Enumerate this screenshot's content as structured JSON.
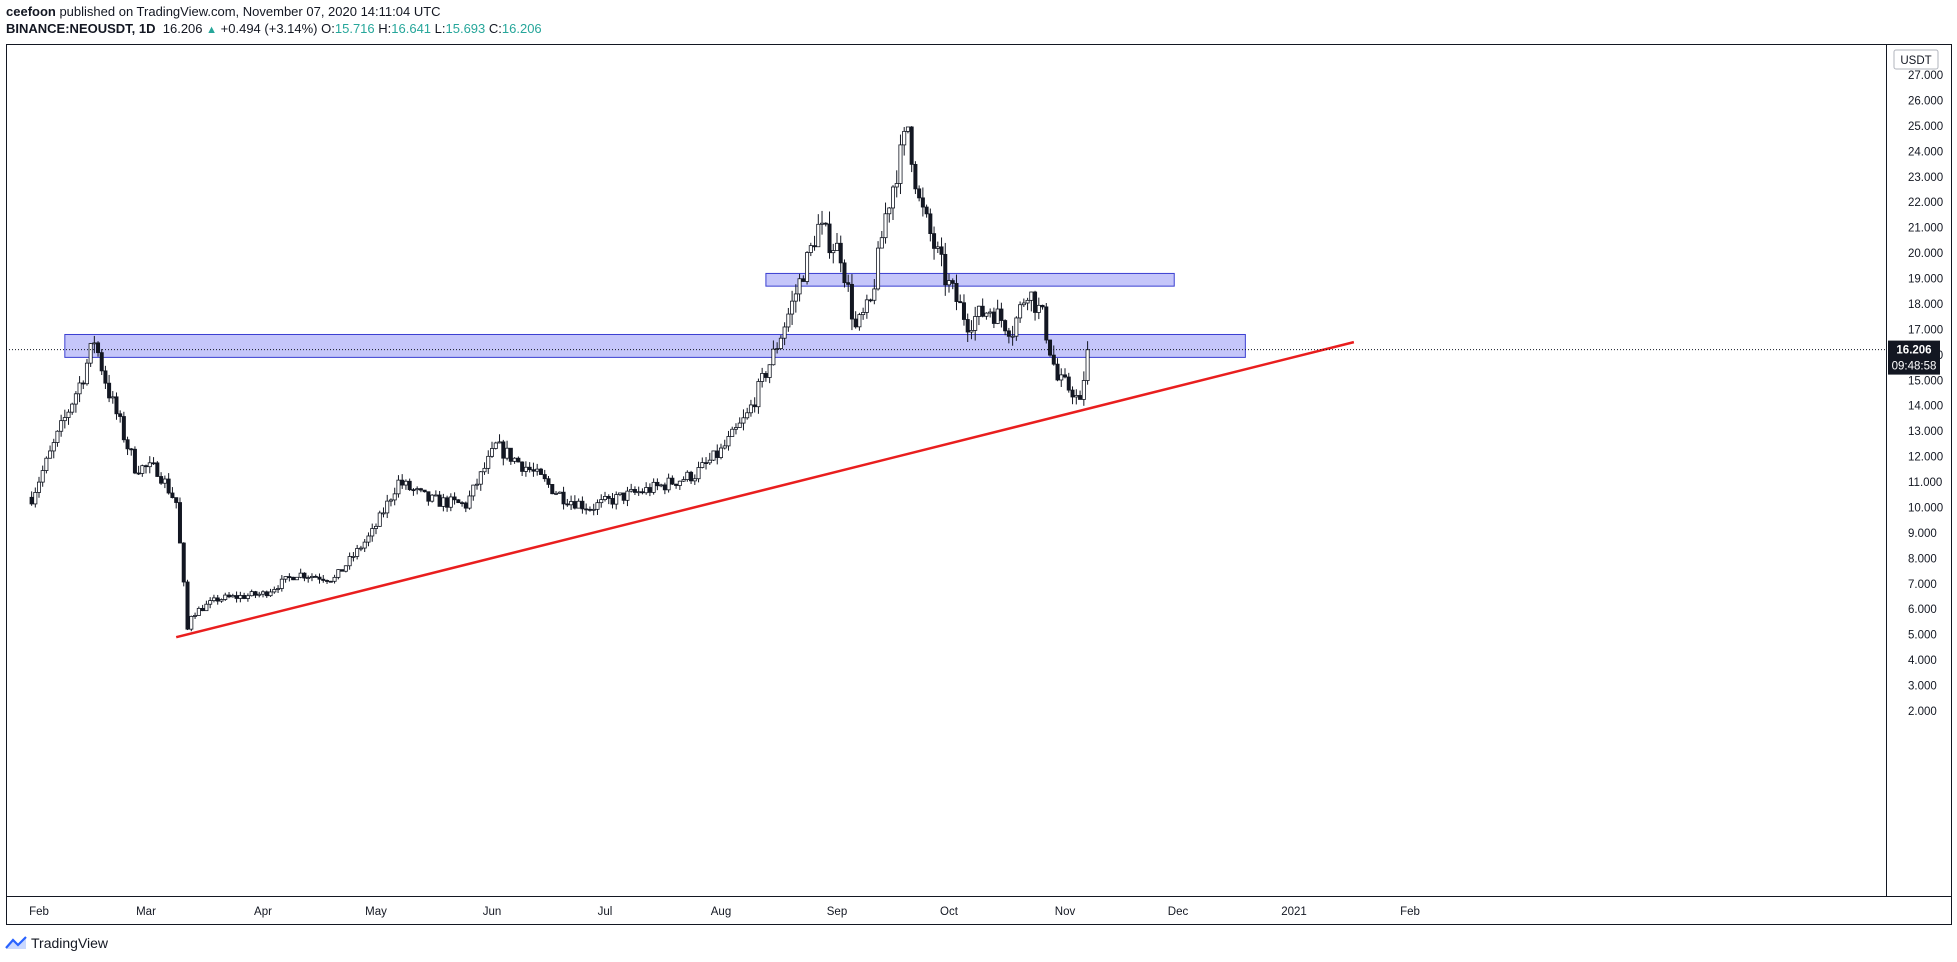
{
  "header": {
    "author": "ceefoon",
    "published_text": " published on TradingView.com, November 07, 2020 14:11:04 UTC",
    "symbol": "BINANCE:NEOUSDT, 1D",
    "last": "16.206",
    "change": "+0.494 (+3.14%)",
    "o_label": "O:",
    "o_value": "15.716",
    "h_label": "H:",
    "h_value": "16.641",
    "l_label": "L:",
    "l_value": "15.693",
    "c_label": "C:",
    "c_value": "16.206"
  },
  "price_axis": {
    "currency": "USDT",
    "last_price_label": "16.206",
    "countdown": "09:48:58"
  },
  "footer": {
    "brand": "TradingView"
  },
  "colors": {
    "candle": "#131722",
    "trendline": "#e91e1e",
    "zone_fill": "#9598f5",
    "zone_border": "#3a3fd1",
    "price_tag": "#131722"
  },
  "chart_data": {
    "type": "candlestick",
    "title": "BINANCE:NEOUSDT, 1D",
    "ylim": [
      2,
      28
    ],
    "y_ticks": [
      "2.000",
      "3.000",
      "4.000",
      "5.000",
      "6.000",
      "7.000",
      "8.000",
      "9.000",
      "10.000",
      "11.000",
      "12.000",
      "13.000",
      "14.000",
      "15.000",
      "16.000",
      "17.000",
      "18.000",
      "19.000",
      "20.000",
      "21.000",
      "22.000",
      "23.000",
      "24.000",
      "25.000",
      "26.000",
      "27.000"
    ],
    "x_ticks": [
      "Feb",
      "Mar",
      "Apr",
      "May",
      "Jun",
      "Jul",
      "Aug",
      "Sep",
      "Oct",
      "Nov",
      "Dec",
      "2021",
      "Feb"
    ],
    "series": [
      {
        "values": [
          {
            "x": "2020-01-30",
            "y": 10.4
          },
          {
            "x": "2020-02-06",
            "y": 12.8
          },
          {
            "x": "2020-02-13",
            "y": 15.2
          },
          {
            "x": "2020-02-16",
            "y": 16.6
          },
          {
            "x": "2020-02-20",
            "y": 14.5
          },
          {
            "x": "2020-02-27",
            "y": 11.6
          },
          {
            "x": "2020-03-04",
            "y": 11.5
          },
          {
            "x": "2020-03-09",
            "y": 10.2
          },
          {
            "x": "2020-03-12",
            "y": 5.2
          },
          {
            "x": "2020-03-13",
            "y": 5.8
          },
          {
            "x": "2020-03-20",
            "y": 6.4
          },
          {
            "x": "2020-04-01",
            "y": 6.6
          },
          {
            "x": "2020-04-10",
            "y": 7.4
          },
          {
            "x": "2020-04-20",
            "y": 7.2
          },
          {
            "x": "2020-04-30",
            "y": 9.0
          },
          {
            "x": "2020-05-07",
            "y": 11.0
          },
          {
            "x": "2020-05-15",
            "y": 10.3
          },
          {
            "x": "2020-05-25",
            "y": 10.1
          },
          {
            "x": "2020-06-02",
            "y": 12.4
          },
          {
            "x": "2020-06-10",
            "y": 11.6
          },
          {
            "x": "2020-06-20",
            "y": 10.4
          },
          {
            "x": "2020-06-27",
            "y": 10.0
          },
          {
            "x": "2020-07-05",
            "y": 10.4
          },
          {
            "x": "2020-07-15",
            "y": 10.8
          },
          {
            "x": "2020-07-25",
            "y": 11.3
          },
          {
            "x": "2020-08-01",
            "y": 12.2
          },
          {
            "x": "2020-08-08",
            "y": 13.6
          },
          {
            "x": "2020-08-15",
            "y": 16.0
          },
          {
            "x": "2020-08-20",
            "y": 18.0
          },
          {
            "x": "2020-08-27",
            "y": 21.0
          },
          {
            "x": "2020-09-02",
            "y": 20.0
          },
          {
            "x": "2020-09-06",
            "y": 17.0
          },
          {
            "x": "2020-09-10",
            "y": 18.0
          },
          {
            "x": "2020-09-14",
            "y": 21.5
          },
          {
            "x": "2020-09-20",
            "y": 25.0
          },
          {
            "x": "2020-09-23",
            "y": 22.0
          },
          {
            "x": "2020-09-30",
            "y": 19.0
          },
          {
            "x": "2020-10-06",
            "y": 17.3
          },
          {
            "x": "2020-10-12",
            "y": 17.8
          },
          {
            "x": "2020-10-18",
            "y": 17.0
          },
          {
            "x": "2020-10-22",
            "y": 18.6
          },
          {
            "x": "2020-10-26",
            "y": 17.5
          },
          {
            "x": "2020-10-30",
            "y": 15.0
          },
          {
            "x": "2020-11-03",
            "y": 14.6
          },
          {
            "x": "2020-11-05",
            "y": 14.0
          },
          {
            "x": "2020-11-07",
            "y": 16.2
          }
        ]
      }
    ],
    "zones": [
      {
        "x_start": "2020-02-08",
        "x_end": "2020-12-19",
        "y_low": 15.9,
        "y_high": 16.8
      },
      {
        "x_start": "2020-08-13",
        "x_end": "2020-11-30",
        "y_low": 18.7,
        "y_high": 19.2
      }
    ],
    "trendline": {
      "x_start": "2020-03-09",
      "y_start": 4.9,
      "x_end": "2021-01-17",
      "y_end": 16.5
    },
    "grid": false
  }
}
